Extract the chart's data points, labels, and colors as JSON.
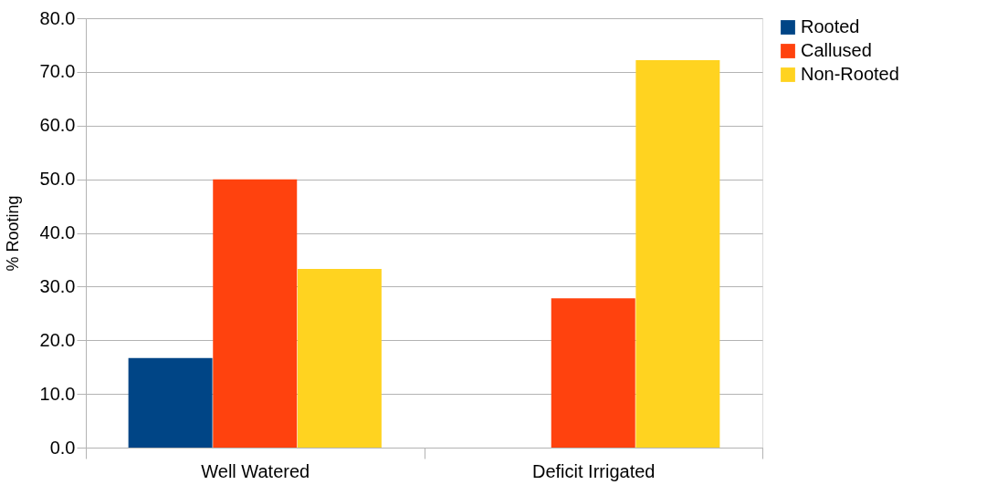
{
  "chart_data": {
    "type": "bar",
    "ylabel": "% Rooting",
    "categories": [
      "Well Watered",
      "Deficit Irrigated"
    ],
    "series": [
      {
        "name": "Rooted",
        "color": "#004586",
        "values": [
          16.7,
          0.0
        ]
      },
      {
        "name": "Callused",
        "color": "#ff420e",
        "values": [
          50.0,
          27.8
        ]
      },
      {
        "name": "Non-Rooted",
        "color": "#ffd320",
        "values": [
          33.3,
          72.2
        ]
      }
    ],
    "ylim": [
      0,
      80
    ],
    "yticks": [
      {
        "value": 0,
        "label": "0.0"
      },
      {
        "value": 10,
        "label": "10.0"
      },
      {
        "value": 20,
        "label": "20.0"
      },
      {
        "value": 30,
        "label": "30.0"
      },
      {
        "value": 40,
        "label": "40.0"
      },
      {
        "value": 50,
        "label": "50.0"
      },
      {
        "value": 60,
        "label": "60.0"
      },
      {
        "value": 70,
        "label": "70.0"
      },
      {
        "value": 80,
        "label": "80.0"
      }
    ],
    "grid": "y",
    "legend": "right"
  }
}
